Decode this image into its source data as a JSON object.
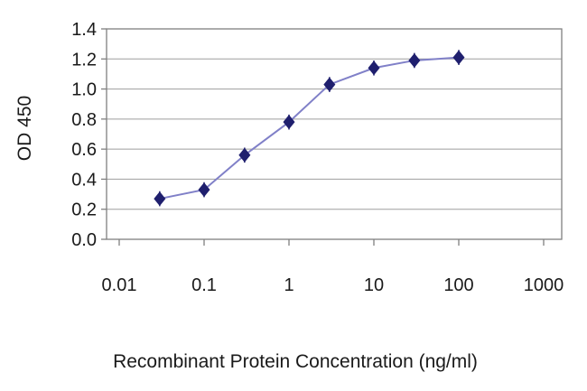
{
  "chart_data": {
    "type": "line",
    "title": "",
    "xlabel": "Recombinant Protein Concentration (ng/ml)",
    "ylabel": "OD 450",
    "x_scale": "log",
    "xlim": [
      0.01,
      1000
    ],
    "ylim": [
      0,
      1.4
    ],
    "x_ticks": [
      0.01,
      0.1,
      1,
      10,
      100,
      1000
    ],
    "x_tick_labels": [
      "0.01",
      "0.1",
      "1",
      "10",
      "100",
      "1000"
    ],
    "y_ticks": [
      0,
      0.2,
      0.4,
      0.6,
      0.8,
      1.0,
      1.2,
      1.4
    ],
    "y_tick_labels": [
      "0.0",
      "0.2",
      "0.4",
      "0.6",
      "0.8",
      "1.0",
      "1.2",
      "1.4"
    ],
    "grid": "horizontal",
    "legend": "none",
    "series": [
      {
        "name": "OD 450",
        "x": [
          0.03,
          0.1,
          0.3,
          1,
          3,
          10,
          30,
          100
        ],
        "y": [
          0.27,
          0.33,
          0.56,
          0.78,
          1.03,
          1.14,
          1.19,
          1.21
        ],
        "y_err": 0.05,
        "marker": "diamond"
      }
    ],
    "line_color": "#8080c8",
    "marker_color": "#1f1f6e",
    "grid_color": "#9e9e9e",
    "axis_color": "#808080",
    "text_color": "#1a1a1a",
    "background": "#ffffff"
  }
}
